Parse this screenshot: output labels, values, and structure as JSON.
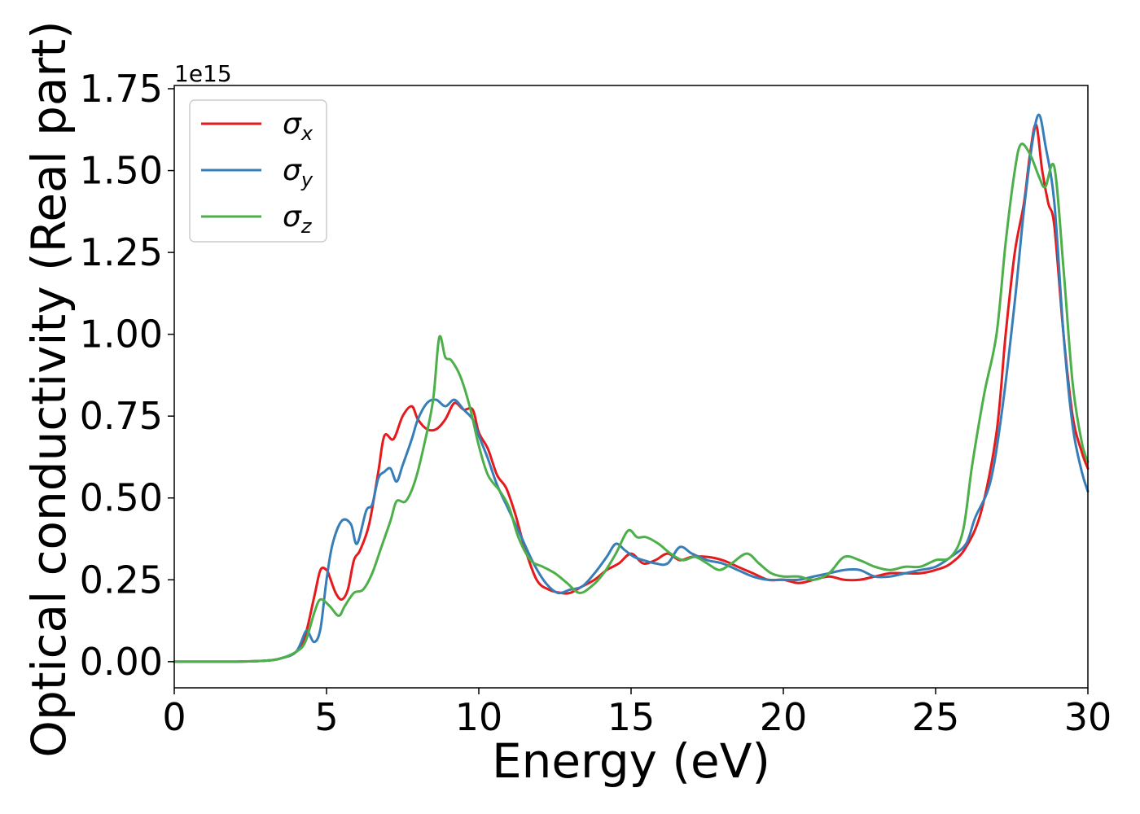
{
  "chart_data": {
    "type": "line",
    "xlabel": "Energy (eV)",
    "ylabel": "Optical conductivity (Real part)",
    "y_offset_label": "1e15",
    "xlim": [
      0,
      30
    ],
    "ylim": [
      -0.08,
      1.76
    ],
    "x_ticks": [
      0,
      5,
      10,
      15,
      20,
      25,
      30
    ],
    "x_tick_labels": [
      "0",
      "5",
      "10",
      "15",
      "20",
      "25",
      "30"
    ],
    "y_ticks": [
      0.0,
      0.25,
      0.5,
      0.75,
      1.0,
      1.25,
      1.5,
      1.75
    ],
    "y_tick_labels": [
      "0.00",
      "0.25",
      "0.50",
      "0.75",
      "1.00",
      "1.25",
      "1.50",
      "1.75"
    ],
    "grid": false,
    "legend_position": "top-left",
    "colors": {
      "sigma_x": "#e41a1c",
      "sigma_y": "#377eb8",
      "sigma_z": "#4daf4a"
    },
    "series": [
      {
        "name": "σx",
        "symbol": "σ",
        "subscript": "x",
        "color": "#e41a1c",
        "points": [
          [
            0,
            0
          ],
          [
            2,
            0
          ],
          [
            3,
            0.003
          ],
          [
            3.5,
            0.01
          ],
          [
            4.0,
            0.03
          ],
          [
            4.3,
            0.08
          ],
          [
            4.6,
            0.2
          ],
          [
            4.8,
            0.28
          ],
          [
            5.0,
            0.28
          ],
          [
            5.1,
            0.26
          ],
          [
            5.3,
            0.21
          ],
          [
            5.5,
            0.19
          ],
          [
            5.7,
            0.22
          ],
          [
            5.9,
            0.31
          ],
          [
            6.1,
            0.34
          ],
          [
            6.4,
            0.42
          ],
          [
            6.7,
            0.58
          ],
          [
            6.9,
            0.69
          ],
          [
            7.2,
            0.68
          ],
          [
            7.5,
            0.75
          ],
          [
            7.8,
            0.78
          ],
          [
            8.0,
            0.74
          ],
          [
            8.3,
            0.71
          ],
          [
            8.6,
            0.71
          ],
          [
            8.9,
            0.74
          ],
          [
            9.2,
            0.79
          ],
          [
            9.5,
            0.77
          ],
          [
            9.8,
            0.77
          ],
          [
            10.0,
            0.7
          ],
          [
            10.3,
            0.65
          ],
          [
            10.6,
            0.57
          ],
          [
            10.9,
            0.53
          ],
          [
            11.2,
            0.45
          ],
          [
            11.5,
            0.35
          ],
          [
            11.9,
            0.25
          ],
          [
            12.3,
            0.22
          ],
          [
            12.7,
            0.21
          ],
          [
            13.0,
            0.21
          ],
          [
            13.4,
            0.23
          ],
          [
            13.8,
            0.25
          ],
          [
            14.2,
            0.28
          ],
          [
            14.6,
            0.3
          ],
          [
            15.0,
            0.33
          ],
          [
            15.4,
            0.3
          ],
          [
            15.8,
            0.31
          ],
          [
            16.2,
            0.33
          ],
          [
            16.6,
            0.31
          ],
          [
            17.0,
            0.32
          ],
          [
            17.5,
            0.32
          ],
          [
            18.0,
            0.31
          ],
          [
            18.5,
            0.29
          ],
          [
            19.0,
            0.27
          ],
          [
            19.5,
            0.25
          ],
          [
            20.0,
            0.25
          ],
          [
            20.5,
            0.24
          ],
          [
            21.0,
            0.25
          ],
          [
            21.5,
            0.26
          ],
          [
            22.0,
            0.25
          ],
          [
            22.5,
            0.25
          ],
          [
            23.0,
            0.26
          ],
          [
            23.5,
            0.27
          ],
          [
            24.0,
            0.27
          ],
          [
            24.5,
            0.27
          ],
          [
            25.0,
            0.28
          ],
          [
            25.5,
            0.3
          ],
          [
            26.0,
            0.35
          ],
          [
            26.5,
            0.46
          ],
          [
            27.0,
            0.7
          ],
          [
            27.3,
            1.0
          ],
          [
            27.6,
            1.25
          ],
          [
            27.9,
            1.4
          ],
          [
            28.1,
            1.55
          ],
          [
            28.3,
            1.64
          ],
          [
            28.5,
            1.5
          ],
          [
            28.7,
            1.4
          ],
          [
            28.9,
            1.33
          ],
          [
            29.2,
            1.0
          ],
          [
            29.5,
            0.75
          ],
          [
            29.8,
            0.64
          ],
          [
            30.0,
            0.59
          ]
        ]
      },
      {
        "name": "σy",
        "symbol": "σ",
        "subscript": "y",
        "color": "#377eb8",
        "points": [
          [
            0,
            0
          ],
          [
            2,
            0
          ],
          [
            3,
            0.003
          ],
          [
            3.5,
            0.01
          ],
          [
            4.0,
            0.03
          ],
          [
            4.3,
            0.09
          ],
          [
            4.4,
            0.09
          ],
          [
            4.6,
            0.06
          ],
          [
            4.8,
            0.1
          ],
          [
            5.0,
            0.25
          ],
          [
            5.2,
            0.36
          ],
          [
            5.5,
            0.43
          ],
          [
            5.8,
            0.42
          ],
          [
            6.0,
            0.36
          ],
          [
            6.3,
            0.46
          ],
          [
            6.5,
            0.48
          ],
          [
            6.7,
            0.56
          ],
          [
            6.9,
            0.58
          ],
          [
            7.1,
            0.59
          ],
          [
            7.3,
            0.55
          ],
          [
            7.5,
            0.6
          ],
          [
            7.8,
            0.68
          ],
          [
            8.0,
            0.74
          ],
          [
            8.3,
            0.79
          ],
          [
            8.6,
            0.8
          ],
          [
            8.9,
            0.78
          ],
          [
            9.2,
            0.8
          ],
          [
            9.5,
            0.77
          ],
          [
            9.8,
            0.74
          ],
          [
            10.0,
            0.69
          ],
          [
            10.3,
            0.62
          ],
          [
            10.6,
            0.54
          ],
          [
            11.0,
            0.46
          ],
          [
            11.4,
            0.38
          ],
          [
            11.8,
            0.3
          ],
          [
            12.2,
            0.24
          ],
          [
            12.6,
            0.21
          ],
          [
            13.0,
            0.22
          ],
          [
            13.4,
            0.23
          ],
          [
            13.8,
            0.27
          ],
          [
            14.2,
            0.32
          ],
          [
            14.5,
            0.36
          ],
          [
            14.8,
            0.34
          ],
          [
            15.1,
            0.32
          ],
          [
            15.4,
            0.31
          ],
          [
            15.8,
            0.3
          ],
          [
            16.2,
            0.3
          ],
          [
            16.6,
            0.35
          ],
          [
            17.0,
            0.33
          ],
          [
            17.5,
            0.31
          ],
          [
            18.0,
            0.3
          ],
          [
            18.5,
            0.28
          ],
          [
            19.0,
            0.26
          ],
          [
            19.5,
            0.25
          ],
          [
            20.0,
            0.25
          ],
          [
            20.5,
            0.25
          ],
          [
            21.0,
            0.26
          ],
          [
            21.5,
            0.27
          ],
          [
            22.0,
            0.28
          ],
          [
            22.5,
            0.28
          ],
          [
            23.0,
            0.26
          ],
          [
            23.5,
            0.26
          ],
          [
            24.0,
            0.27
          ],
          [
            24.5,
            0.28
          ],
          [
            25.0,
            0.29
          ],
          [
            25.5,
            0.32
          ],
          [
            26.0,
            0.36
          ],
          [
            26.3,
            0.44
          ],
          [
            26.8,
            0.55
          ],
          [
            27.2,
            0.78
          ],
          [
            27.6,
            1.1
          ],
          [
            27.9,
            1.38
          ],
          [
            28.2,
            1.6
          ],
          [
            28.4,
            1.67
          ],
          [
            28.6,
            1.58
          ],
          [
            28.9,
            1.4
          ],
          [
            29.2,
            1.0
          ],
          [
            29.5,
            0.72
          ],
          [
            29.8,
            0.58
          ],
          [
            30.0,
            0.52
          ]
        ]
      },
      {
        "name": "σz",
        "symbol": "σ",
        "subscript": "z",
        "color": "#4daf4a",
        "points": [
          [
            0,
            0
          ],
          [
            2,
            0
          ],
          [
            3,
            0.003
          ],
          [
            3.5,
            0.01
          ],
          [
            4.0,
            0.03
          ],
          [
            4.3,
            0.06
          ],
          [
            4.6,
            0.15
          ],
          [
            4.8,
            0.19
          ],
          [
            5.1,
            0.17
          ],
          [
            5.4,
            0.14
          ],
          [
            5.6,
            0.17
          ],
          [
            5.9,
            0.21
          ],
          [
            6.2,
            0.22
          ],
          [
            6.5,
            0.27
          ],
          [
            6.8,
            0.35
          ],
          [
            7.1,
            0.43
          ],
          [
            7.3,
            0.49
          ],
          [
            7.6,
            0.49
          ],
          [
            7.9,
            0.55
          ],
          [
            8.2,
            0.66
          ],
          [
            8.5,
            0.8
          ],
          [
            8.7,
            0.99
          ],
          [
            8.9,
            0.93
          ],
          [
            9.1,
            0.92
          ],
          [
            9.4,
            0.87
          ],
          [
            9.7,
            0.78
          ],
          [
            10.0,
            0.66
          ],
          [
            10.3,
            0.57
          ],
          [
            10.7,
            0.52
          ],
          [
            11.0,
            0.47
          ],
          [
            11.3,
            0.38
          ],
          [
            11.7,
            0.31
          ],
          [
            12.1,
            0.29
          ],
          [
            12.5,
            0.27
          ],
          [
            12.9,
            0.24
          ],
          [
            13.3,
            0.21
          ],
          [
            13.7,
            0.23
          ],
          [
            14.1,
            0.27
          ],
          [
            14.5,
            0.33
          ],
          [
            14.9,
            0.4
          ],
          [
            15.2,
            0.38
          ],
          [
            15.5,
            0.38
          ],
          [
            15.9,
            0.36
          ],
          [
            16.3,
            0.33
          ],
          [
            16.7,
            0.31
          ],
          [
            17.1,
            0.32
          ],
          [
            17.5,
            0.3
          ],
          [
            17.9,
            0.28
          ],
          [
            18.3,
            0.3
          ],
          [
            18.8,
            0.33
          ],
          [
            19.2,
            0.3
          ],
          [
            19.6,
            0.27
          ],
          [
            20.0,
            0.26
          ],
          [
            20.5,
            0.26
          ],
          [
            21.0,
            0.25
          ],
          [
            21.5,
            0.27
          ],
          [
            22.0,
            0.32
          ],
          [
            22.5,
            0.31
          ],
          [
            23.0,
            0.29
          ],
          [
            23.5,
            0.28
          ],
          [
            24.0,
            0.29
          ],
          [
            24.5,
            0.29
          ],
          [
            25.0,
            0.31
          ],
          [
            25.5,
            0.32
          ],
          [
            25.9,
            0.4
          ],
          [
            26.2,
            0.6
          ],
          [
            26.6,
            0.82
          ],
          [
            27.0,
            1.0
          ],
          [
            27.3,
            1.28
          ],
          [
            27.6,
            1.5
          ],
          [
            27.8,
            1.58
          ],
          [
            28.1,
            1.55
          ],
          [
            28.4,
            1.48
          ],
          [
            28.6,
            1.45
          ],
          [
            28.9,
            1.51
          ],
          [
            29.2,
            1.2
          ],
          [
            29.5,
            0.85
          ],
          [
            29.8,
            0.67
          ],
          [
            30.0,
            0.61
          ]
        ]
      }
    ]
  }
}
